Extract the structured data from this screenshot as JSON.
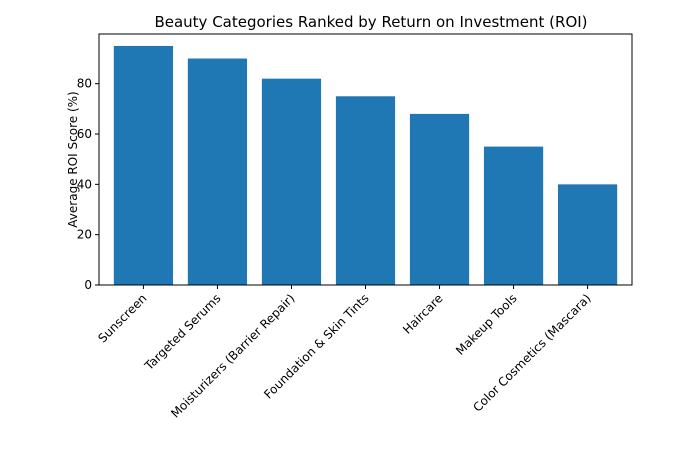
{
  "chart_data": {
    "type": "bar",
    "title": "Beauty Categories Ranked by Return on Investment (ROI)",
    "xlabel": "",
    "ylabel": "Average ROI Score (%)",
    "categories": [
      "Sunscreen",
      "Targeted Serums",
      "Moisturizers (Barrier Repair)",
      "Foundation & Skin Tints",
      "Haircare",
      "Makeup Tools",
      "Color Cosmetics (Mascara)"
    ],
    "values": [
      95,
      90,
      82,
      75,
      68,
      55,
      40
    ],
    "ylim": [
      0,
      99.75
    ],
    "yticks": [
      0,
      20,
      40,
      60,
      80
    ],
    "grid": false,
    "color": "#1f77b4"
  }
}
